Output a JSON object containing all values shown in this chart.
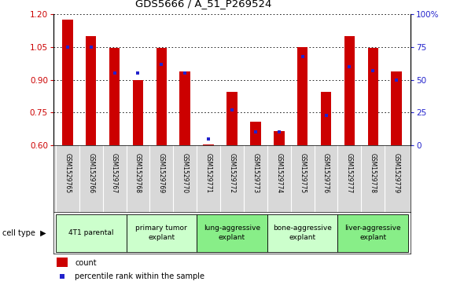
{
  "title": "GDS5666 / A_51_P269524",
  "samples": [
    "GSM1529765",
    "GSM1529766",
    "GSM1529767",
    "GSM1529768",
    "GSM1529769",
    "GSM1529770",
    "GSM1529771",
    "GSM1529772",
    "GSM1529773",
    "GSM1529774",
    "GSM1529775",
    "GSM1529776",
    "GSM1529777",
    "GSM1529778",
    "GSM1529779"
  ],
  "count_values": [
    1.175,
    1.1,
    1.045,
    0.9,
    1.045,
    0.94,
    0.605,
    0.845,
    0.71,
    0.665,
    1.05,
    0.845,
    1.1,
    1.045,
    0.94
  ],
  "percentile_values_pct": [
    75,
    75,
    55,
    55,
    62,
    55,
    5,
    27,
    10,
    10,
    68,
    23,
    60,
    57,
    50
  ],
  "ylim_left": [
    0.6,
    1.2
  ],
  "ylim_right": [
    0,
    100
  ],
  "yticks_left": [
    0.6,
    0.75,
    0.9,
    1.05,
    1.2
  ],
  "yticks_right": [
    0,
    25,
    50,
    75,
    100
  ],
  "ytick_labels_right": [
    "0",
    "25",
    "50",
    "75",
    "100%"
  ],
  "bar_color": "#cc0000",
  "percentile_color": "#2222cc",
  "bar_width": 0.45,
  "groups": [
    {
      "label": "4T1 parental",
      "indices": [
        0,
        1,
        2
      ],
      "color": "#ccffcc"
    },
    {
      "label": "primary tumor\nexplant",
      "indices": [
        3,
        4,
        5
      ],
      "color": "#ccffcc"
    },
    {
      "label": "lung-aggressive\nexplant",
      "indices": [
        6,
        7,
        8
      ],
      "color": "#88ee88"
    },
    {
      "label": "bone-aggressive\nexplant",
      "indices": [
        9,
        10,
        11
      ],
      "color": "#ccffcc"
    },
    {
      "label": "liver-aggressive\nexplant",
      "indices": [
        12,
        13,
        14
      ],
      "color": "#88ee88"
    }
  ],
  "grid_color": "#000000",
  "tick_label_color_left": "#cc0000",
  "tick_label_color_right": "#2222cc",
  "legend_count_label": "count",
  "legend_percentile_label": "percentile rank within the sample",
  "cell_type_label": "cell type"
}
